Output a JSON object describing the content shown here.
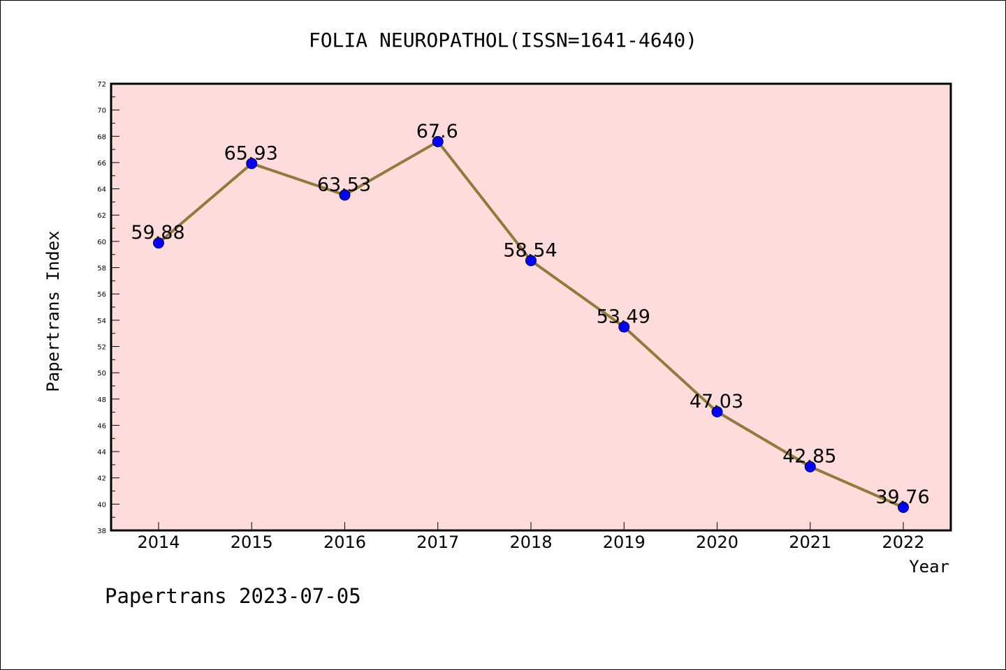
{
  "chart_data": {
    "type": "line",
    "title": "FOLIA NEUROPATHOL(ISSN=1641-4640)",
    "xlabel": "Year",
    "ylabel": "Papertrans Index",
    "x": [
      "2014",
      "2015",
      "2016",
      "2017",
      "2018",
      "2019",
      "2020",
      "2021",
      "2022"
    ],
    "values": [
      59.88,
      65.93,
      63.53,
      67.6,
      58.54,
      53.49,
      47.03,
      42.85,
      39.76
    ],
    "data_labels": [
      "59.88",
      "65.93",
      "63.53",
      "67.6",
      "58.54",
      "53.49",
      "47.03",
      "42.85",
      "39.76"
    ],
    "ylim": [
      38,
      72
    ],
    "yticks": [
      "38",
      "40",
      "42",
      "44",
      "46",
      "48",
      "50",
      "52",
      "54",
      "56",
      "58",
      "60",
      "62",
      "64",
      "66",
      "68",
      "70",
      "72"
    ],
    "grid": false,
    "legend": "none",
    "colors": {
      "plot_background": "#ffdcdc",
      "line": "#8f7b3a",
      "marker": "#0000ff"
    }
  },
  "footer": "Papertrans 2023-07-05"
}
